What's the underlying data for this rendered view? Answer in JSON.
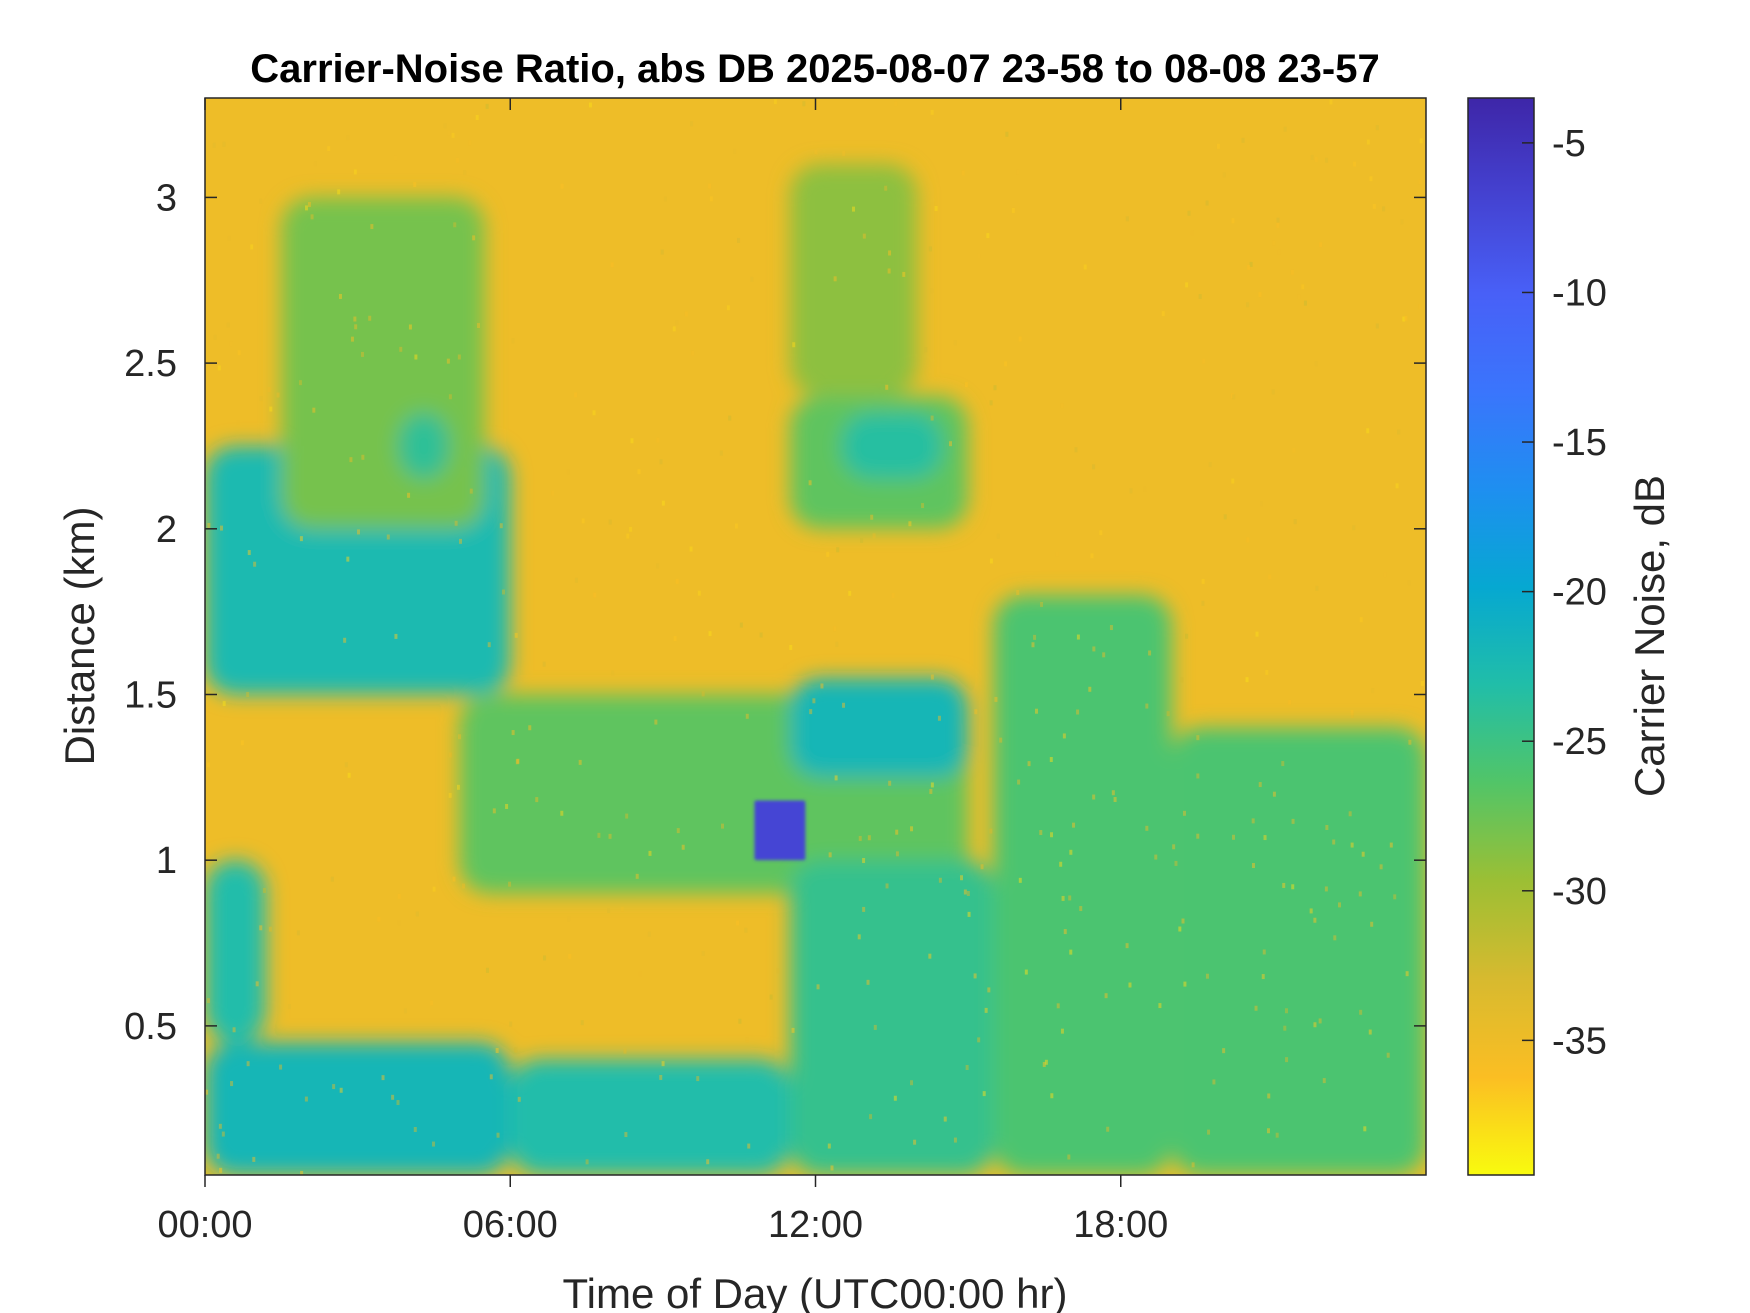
{
  "chart_data": {
    "type": "heatmap",
    "title": "Carrier-Noise Ratio, abs DB 2025-08-07 23-58 to 08-08 23-57",
    "xlabel": "Time of Day (UTC00:00 hr)",
    "ylabel": "Distance (km)",
    "colorbar_label": "Carrier Noise, dB",
    "xlim": [
      0,
      24
    ],
    "ylim": [
      0.05,
      3.3
    ],
    "clim": [
      -39.5,
      -3.5
    ],
    "x_ticks": [
      {
        "value": 0,
        "label": "00:00"
      },
      {
        "value": 6,
        "label": "06:00"
      },
      {
        "value": 12,
        "label": "12:00"
      },
      {
        "value": 18,
        "label": "18:00"
      }
    ],
    "y_ticks": [
      {
        "value": 0.5,
        "label": "0.5"
      },
      {
        "value": 1,
        "label": "1"
      },
      {
        "value": 1.5,
        "label": "1.5"
      },
      {
        "value": 2,
        "label": "2"
      },
      {
        "value": 2.5,
        "label": "2.5"
      },
      {
        "value": 3,
        "label": "3"
      }
    ],
    "colorbar_ticks": [
      {
        "value": -5,
        "label": "-5"
      },
      {
        "value": -10,
        "label": "-10"
      },
      {
        "value": -15,
        "label": "-15"
      },
      {
        "value": -20,
        "label": "-20"
      },
      {
        "value": -25,
        "label": "-25"
      },
      {
        "value": -30,
        "label": "-30"
      },
      {
        "value": -35,
        "label": "-35"
      }
    ],
    "colormap": [
      "#f9fb0e",
      "#fbbe23",
      "#d7ba2f",
      "#9cbf34",
      "#52c567",
      "#21bea8",
      "#06a8d1",
      "#1e8ff0",
      "#3a75fc",
      "#4860f7",
      "#4442d1",
      "#3e26a8"
    ],
    "background_value": -35,
    "regions": [
      {
        "t": [
          0,
          6
        ],
        "d": [
          0.05,
          0.45
        ],
        "value": -22
      },
      {
        "t": [
          0,
          1.2
        ],
        "d": [
          0.45,
          1.0
        ],
        "value": -23
      },
      {
        "t": [
          0,
          6
        ],
        "d": [
          1.5,
          2.25
        ],
        "value": -22.5
      },
      {
        "t": [
          1.5,
          5.5
        ],
        "d": [
          2.0,
          3.0
        ],
        "value": -28
      },
      {
        "t": [
          3.8,
          4.8
        ],
        "d": [
          2.15,
          2.35
        ],
        "value": -24
      },
      {
        "t": [
          6,
          11.5
        ],
        "d": [
          0.05,
          0.4
        ],
        "value": -23
      },
      {
        "t": [
          5,
          15
        ],
        "d": [
          0.9,
          1.5
        ],
        "value": -27
      },
      {
        "t": [
          11.5,
          15
        ],
        "d": [
          1.25,
          1.55
        ],
        "value": -22
      },
      {
        "t": [
          11.5,
          15.5
        ],
        "d": [
          0.05,
          1.0
        ],
        "value": -24.5
      },
      {
        "t": [
          11.5,
          15
        ],
        "d": [
          2.0,
          2.4
        ],
        "value": -27
      },
      {
        "t": [
          12.5,
          14.5
        ],
        "d": [
          2.15,
          2.35
        ],
        "value": -23.5
      },
      {
        "t": [
          11.5,
          14
        ],
        "d": [
          2.4,
          3.1
        ],
        "value": -29
      },
      {
        "t": [
          15.5,
          19
        ],
        "d": [
          0.05,
          1.8
        ],
        "value": -26
      },
      {
        "t": [
          19,
          24
        ],
        "d": [
          0.05,
          1.4
        ],
        "value": -26
      },
      {
        "t": [
          10.8,
          11.8
        ],
        "d": [
          1.0,
          1.18
        ],
        "value": -7
      }
    ]
  }
}
